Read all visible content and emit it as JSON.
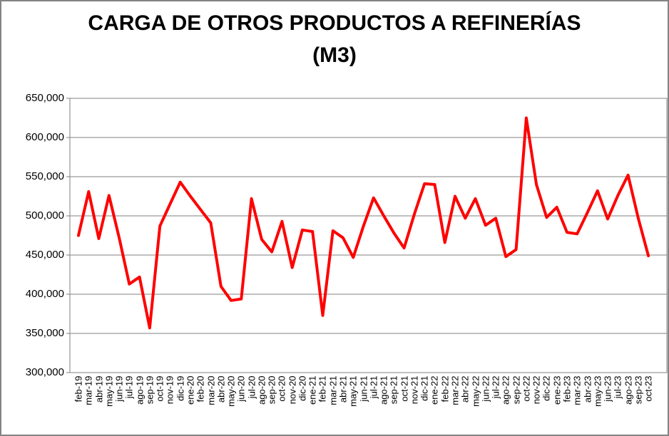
{
  "title": {
    "line1": "CARGA DE OTROS PRODUCTOS A REFINERÍAS",
    "line2": "(M3)"
  },
  "axes": {
    "y_tick_labels": [
      "300,000",
      "350,000",
      "400,000",
      "450,000",
      "500,000",
      "550,000",
      "600,000",
      "650,000"
    ]
  },
  "colors": {
    "line": "#FF0000",
    "grid": "#808080",
    "border": "#808080",
    "background": "#FFFFFF",
    "text": "#000000"
  },
  "chart_data": {
    "type": "line",
    "title": "CARGA DE OTROS PRODUCTOS A REFINERÍAS (M3)",
    "xlabel": "",
    "ylabel": "",
    "ylim": [
      300000,
      650000
    ],
    "ytick_step": 50000,
    "grid": true,
    "legend": "none",
    "line_color": "#FF0000",
    "line_width": 4,
    "categories": [
      "feb-19",
      "mar-19",
      "abr-19",
      "may-19",
      "jun-19",
      "jul-19",
      "ago-19",
      "sep-19",
      "oct-19",
      "nov-19",
      "dic-19",
      "ene-20",
      "feb-20",
      "mar-20",
      "abr-20",
      "may-20",
      "jun-20",
      "jul-20",
      "ago-20",
      "sep-20",
      "oct-20",
      "nov-20",
      "dic-20",
      "ene-21",
      "feb-21",
      "mar-21",
      "abr-21",
      "may-21",
      "jun-21",
      "jul-21",
      "ago-21",
      "sep-21",
      "oct-21",
      "nov-21",
      "dic-21",
      "ene-22",
      "feb-22",
      "mar-22",
      "abr-22",
      "may-22",
      "jun-22",
      "jul-22",
      "ago-22",
      "sep-22",
      "oct-22",
      "nov-22",
      "dic-22",
      "ene-23",
      "feb-23",
      "mar-23",
      "abr-23",
      "may-23",
      "jun-23",
      "jul-23",
      "ago-23",
      "sep-23",
      "oct-23"
    ],
    "values": [
      475000,
      531000,
      471000,
      526000,
      472000,
      413000,
      422000,
      357000,
      487000,
      515000,
      543000,
      525000,
      508000,
      491000,
      410000,
      392000,
      394000,
      522000,
      470000,
      454000,
      493000,
      434000,
      482000,
      480000,
      373000,
      481000,
      472000,
      447000,
      487000,
      523000,
      500000,
      478000,
      459000,
      502000,
      541000,
      540000,
      466000,
      525000,
      497000,
      522000,
      488000,
      497000,
      448000,
      457000,
      625000,
      540000,
      498000,
      511000,
      479000,
      477000,
      504000,
      532000,
      496000,
      526000,
      552000,
      497000,
      449000
    ]
  }
}
